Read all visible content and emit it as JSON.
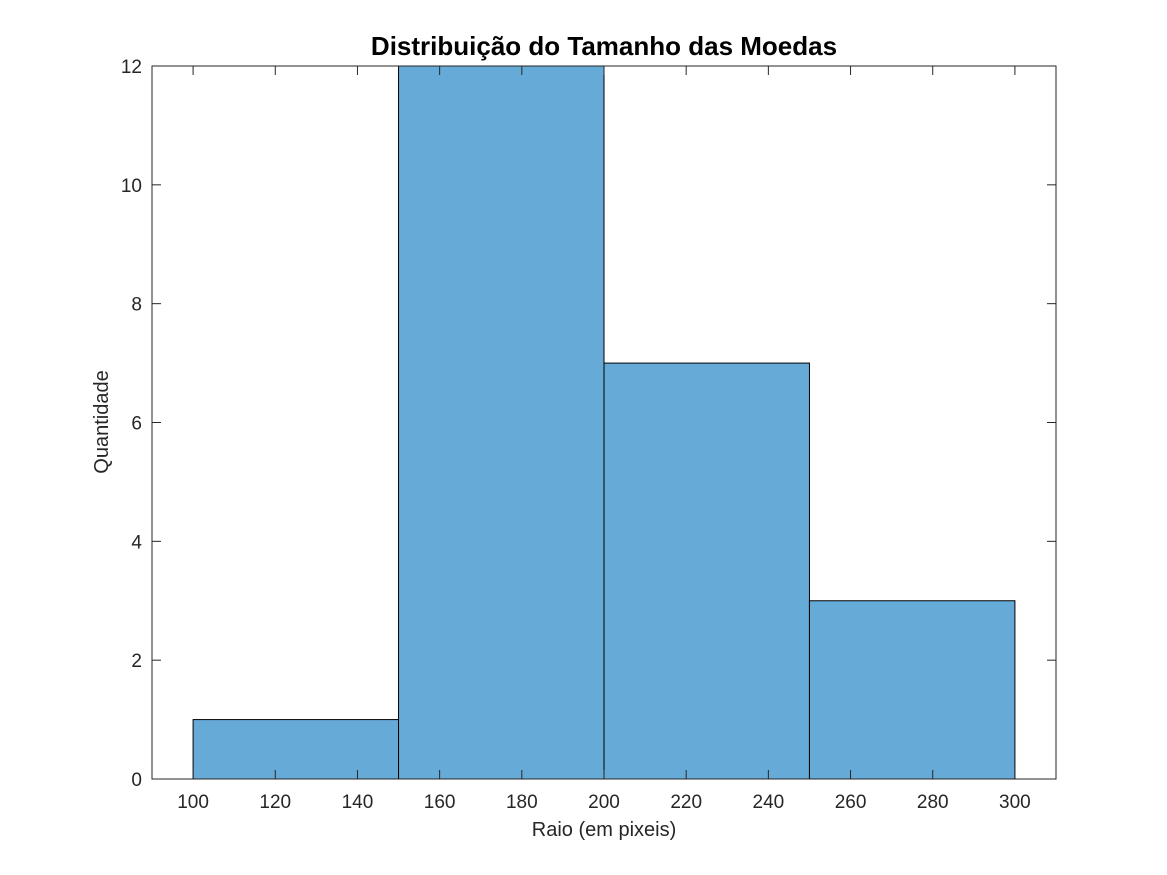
{
  "chart_data": {
    "type": "histogram",
    "title": "Distribuição do Tamanho das Moedas",
    "xlabel": "Raio (em pixeis)",
    "ylabel": "Quantidade",
    "xlim": [
      90,
      310
    ],
    "ylim": [
      0,
      12
    ],
    "xticks": [
      100,
      120,
      140,
      160,
      180,
      200,
      220,
      240,
      260,
      280,
      300
    ],
    "yticks": [
      0,
      2,
      4,
      6,
      8,
      10,
      12
    ],
    "bin_edges": [
      100,
      150,
      200,
      250,
      300
    ],
    "counts": [
      1,
      12,
      7,
      3
    ],
    "bar_color": "#66aad8",
    "edge_color": "#000000",
    "grid": false
  }
}
